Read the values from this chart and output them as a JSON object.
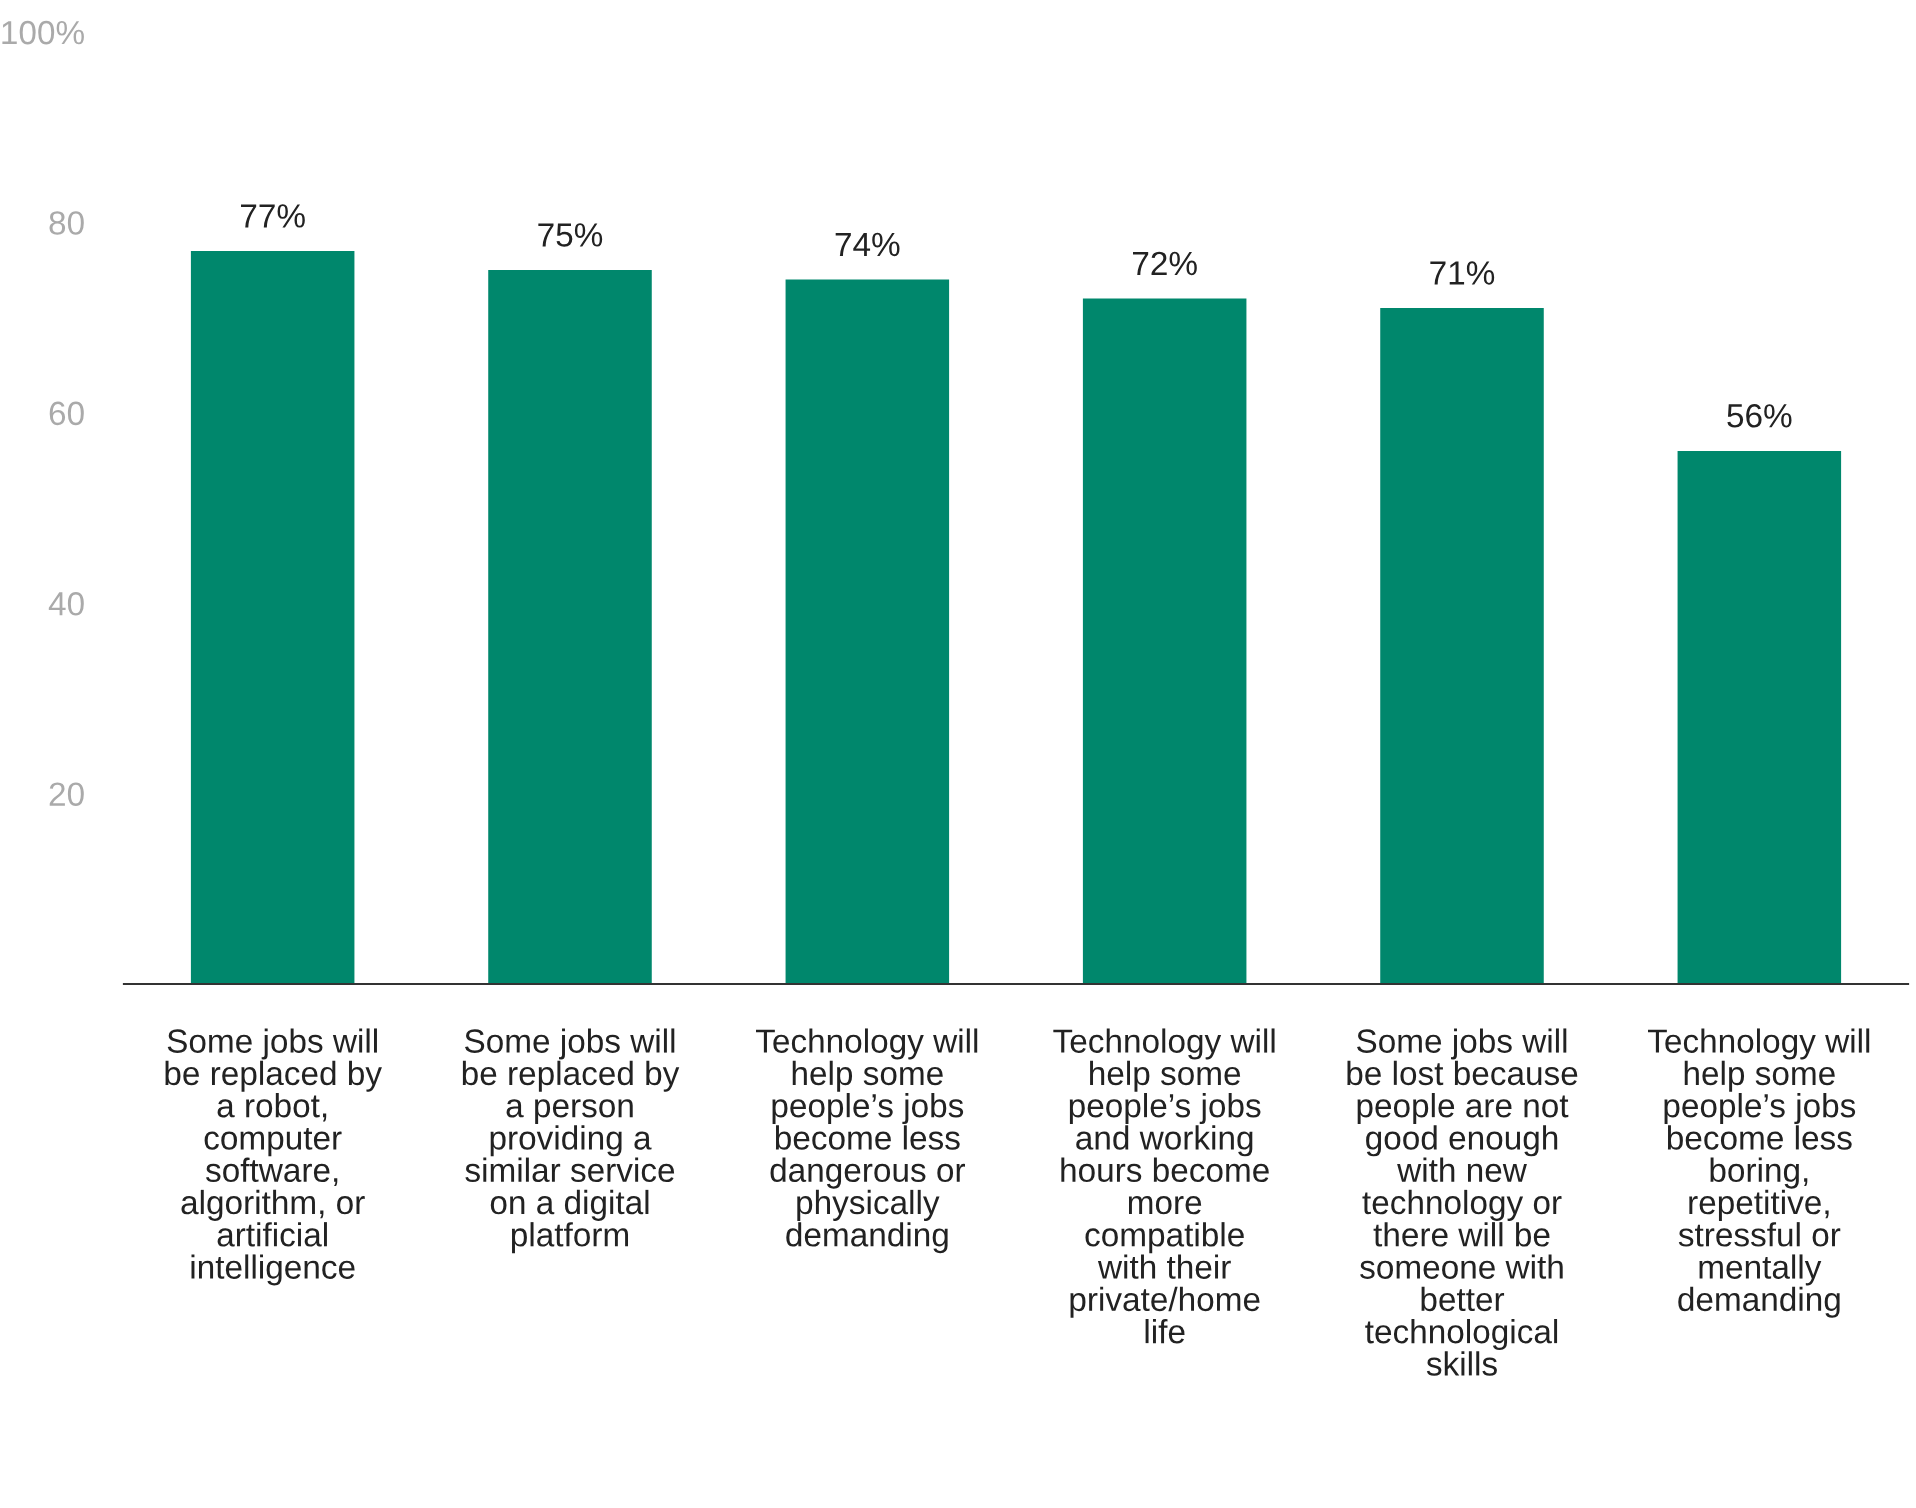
{
  "chart_data": {
    "type": "bar",
    "categories": [
      "Some jobs will\nbe replaced by\na robot,\ncomputer\nsoftware,\nalgorithm, or\nartificial\nintelligence",
      "Some jobs will\nbe replaced by\na person\nproviding a\nsimilar service\non a digital\nplatform",
      "Technology will\nhelp some\npeople’s jobs\nbecome less\ndangerous or\nphysically\ndemanding",
      "Technology will\nhelp some\npeople’s jobs\nand working\nhours become\nmore\ncompatible\nwith their\nprivate/home\nlife",
      "Some jobs will\nbe lost because\npeople are not\ngood enough\nwith new\ntechnology or\nthere will be\nsomeone with\nbetter\ntechnological\nskills",
      "Technology will\nhelp some\npeople’s jobs\nbecome less\nboring,\nrepetitive,\nstressful or\nmentally\ndemanding"
    ],
    "values": [
      77,
      75,
      74,
      72,
      71,
      56
    ],
    "value_labels": [
      "77%",
      "75%",
      "74%",
      "72%",
      "71%",
      "56%"
    ],
    "color": "#00876c",
    "ylim": [
      0,
      100
    ],
    "yticks": [
      20,
      40,
      60,
      80,
      {
        "value": 100,
        "label": "100%"
      }
    ],
    "grid": false
  }
}
